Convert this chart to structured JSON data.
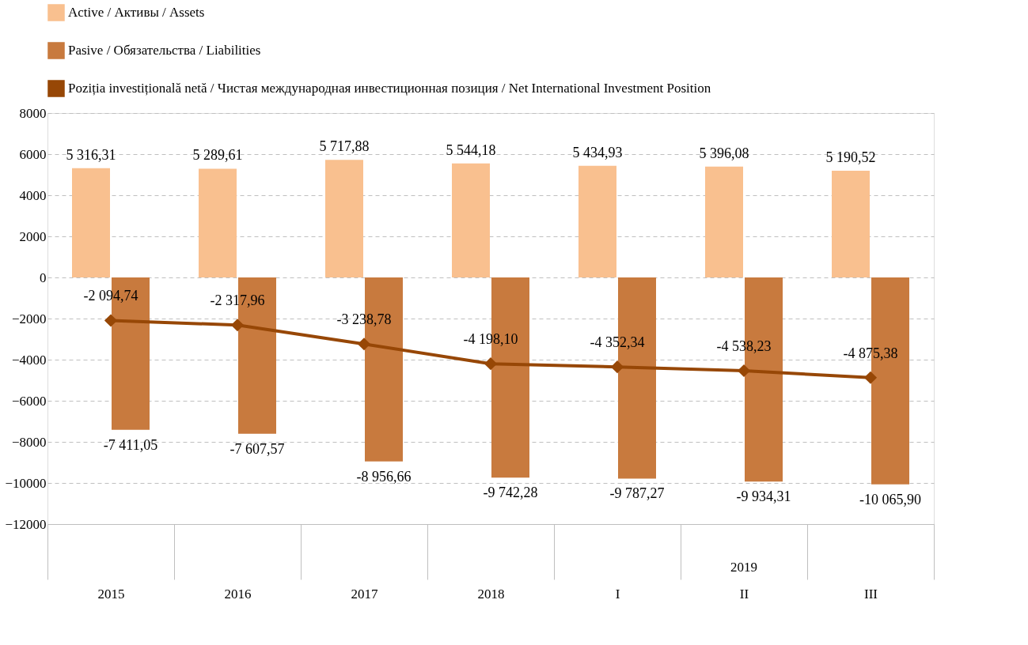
{
  "chart_data": {
    "type": "bar",
    "categories": [
      "2015",
      "2016",
      "2017",
      "2018",
      "I",
      "II",
      "III"
    ],
    "series": [
      {
        "name": "Active / Активы / Assets",
        "color": "#f9c08f",
        "values": [
          5316.31,
          5289.61,
          5717.88,
          5544.18,
          5434.93,
          5396.08,
          5190.52
        ],
        "value_labels": [
          "5 316,31",
          "5 289,61",
          "5 717,88",
          "5 544,18",
          "5 434,93",
          "5 396,08",
          "5 190,52"
        ]
      },
      {
        "name": "Pasive / Обязательства / Liabilities",
        "color": "#c87a3e",
        "values": [
          -7411.05,
          -7607.57,
          -8956.66,
          -9742.28,
          -9787.27,
          -9934.31,
          -10065.9
        ],
        "value_labels": [
          "-7 411,05",
          "-7 607,57",
          "-8 956,66",
          "-9 742,28",
          "-9 787,27",
          "-9 934,31",
          "-10 065,90"
        ]
      },
      {
        "name": "Poziția investițională netă / Чистая международная инвестиционная позиция / Net International Investment Position",
        "type": "line",
        "color": "#974706",
        "marker": "diamond",
        "values": [
          -2094.74,
          -2317.96,
          -3238.78,
          -4198.1,
          -4352.34,
          -4538.23,
          -4875.38
        ],
        "value_labels": [
          "-2 094,74",
          "-2 317,96",
          "-3 238,78",
          "-4 198,10",
          "-4 352,34",
          "-4 538,23",
          "-4 875,38"
        ]
      }
    ],
    "ylim": [
      -12000,
      8000
    ],
    "yticks": [
      -12000,
      -10000,
      -8000,
      -6000,
      -4000,
      -2000,
      0,
      2000,
      4000,
      6000,
      8000
    ],
    "grid": "y",
    "legend": "top",
    "annotations": [
      "2019"
    ]
  }
}
